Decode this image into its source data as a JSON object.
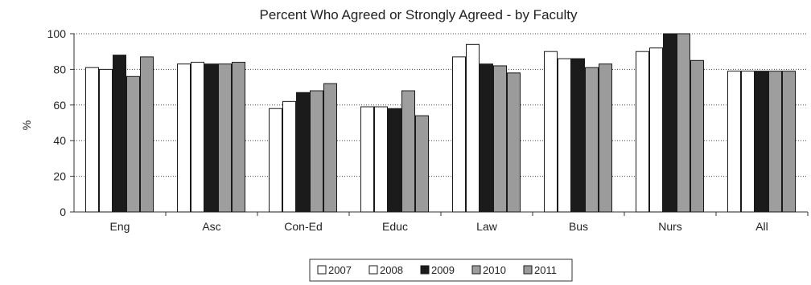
{
  "chart_data": {
    "type": "bar",
    "title": "Percent Who Agreed or Strongly Agreed - by Faculty",
    "xlabel": "",
    "ylabel": "%",
    "ylim": [
      0,
      100
    ],
    "yticks": [
      0,
      20,
      40,
      60,
      80,
      100
    ],
    "categories": [
      "Eng",
      "Asc",
      "Con-Ed",
      "Educ",
      "Law",
      "Bus",
      "Nurs",
      "All"
    ],
    "series": [
      {
        "name": "2007",
        "color": "#ffffff",
        "values": [
          81,
          83,
          58,
          59,
          87,
          90,
          90,
          79
        ]
      },
      {
        "name": "2008",
        "color": "#ffffff",
        "values": [
          80,
          84,
          62,
          59,
          94,
          86,
          92,
          79
        ]
      },
      {
        "name": "2009",
        "color": "#1b1b1b",
        "values": [
          88,
          83,
          67,
          58,
          83,
          86,
          100,
          79
        ]
      },
      {
        "name": "2010",
        "color": "#9e9e9e",
        "values": [
          76,
          83,
          68,
          68,
          82,
          81,
          100,
          79
        ]
      },
      {
        "name": "2011",
        "color": "#9b9b9b",
        "values": [
          87,
          84,
          72,
          54,
          78,
          83,
          85,
          79
        ]
      }
    ],
    "grid": true,
    "legend_position": "bottom-center"
  }
}
